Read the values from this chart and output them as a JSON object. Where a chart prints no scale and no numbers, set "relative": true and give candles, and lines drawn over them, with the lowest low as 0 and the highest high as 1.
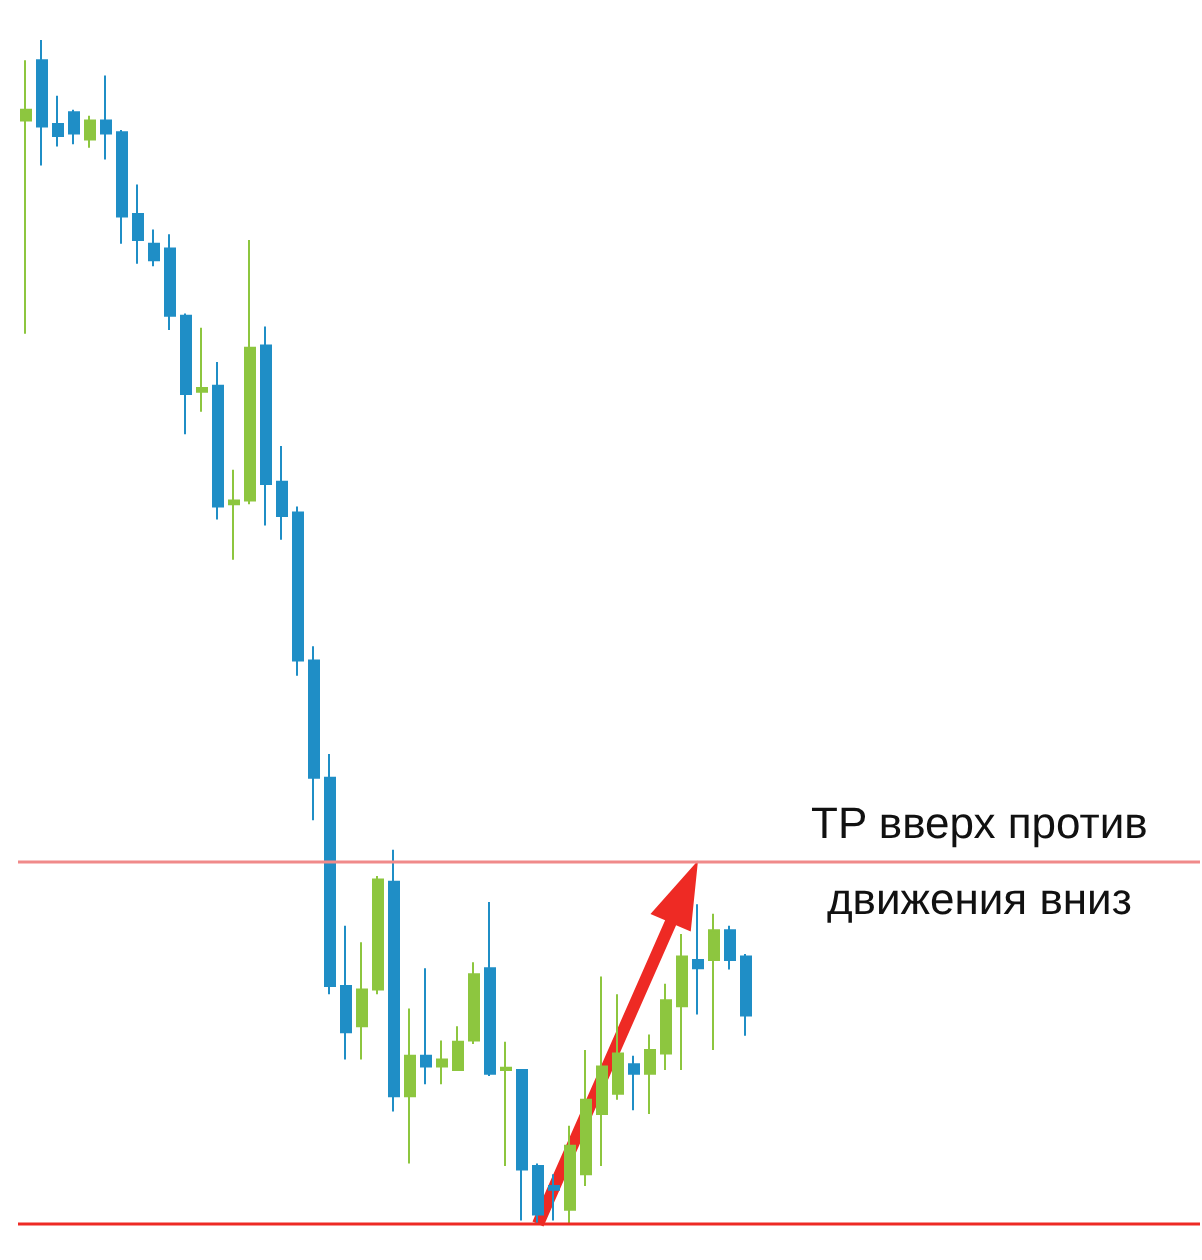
{
  "chart_data": {
    "type": "candlestick",
    "relative": true,
    "categories": [
      null,
      null,
      null,
      null,
      null,
      null,
      null,
      null,
      null,
      null,
      null,
      null,
      null,
      null,
      null,
      null,
      null,
      null,
      null,
      null,
      null,
      null,
      null,
      null,
      null,
      null,
      null,
      null,
      null,
      null,
      null,
      null,
      null,
      null,
      null,
      null,
      null,
      null,
      null,
      null,
      null,
      null,
      null,
      null,
      null,
      null
    ],
    "ohlc": [
      [
        0.932,
        0.983,
        0.752,
        0.941
      ],
      [
        0.983,
        1.0,
        0.894,
        0.927
      ],
      [
        0.929,
        0.953,
        0.91,
        0.919
      ],
      [
        0.939,
        0.941,
        0.912,
        0.921
      ],
      [
        0.916,
        0.936,
        0.909,
        0.932
      ],
      [
        0.932,
        0.97,
        0.899,
        0.921
      ],
      [
        0.922,
        0.924,
        0.828,
        0.851
      ],
      [
        0.853,
        0.878,
        0.811,
        0.831
      ],
      [
        0.828,
        0.84,
        0.809,
        0.814
      ],
      [
        0.824,
        0.836,
        0.755,
        0.767
      ],
      [
        0.767,
        0.769,
        0.667,
        0.701
      ],
      [
        0.703,
        0.757,
        0.686,
        0.706
      ],
      [
        0.708,
        0.728,
        0.595,
        0.606
      ],
      [
        0.608,
        0.637,
        0.561,
        0.611
      ],
      [
        0.611,
        0.831,
        0.608,
        0.74
      ],
      [
        0.742,
        0.758,
        0.59,
        0.625
      ],
      [
        0.627,
        0.657,
        0.578,
        0.598
      ],
      [
        0.601,
        0.606,
        0.463,
        0.476
      ],
      [
        0.476,
        0.488,
        0.341,
        0.377
      ],
      [
        0.377,
        0.397,
        0.194,
        0.201
      ],
      [
        0.201,
        0.252,
        0.139,
        0.162
      ],
      [
        0.167,
        0.238,
        0.139,
        0.198
      ],
      [
        0.198,
        0.294,
        0.194,
        0.291
      ],
      [
        0.289,
        0.316,
        0.095,
        0.108
      ],
      [
        0.108,
        0.182,
        0.051,
        0.142
      ],
      [
        0.142,
        0.216,
        0.118,
        0.133
      ],
      [
        0.133,
        0.155,
        0.118,
        0.139
      ],
      [
        0.13,
        0.167,
        0.13,
        0.154
      ],
      [
        0.155,
        0.221,
        0.152,
        0.211
      ],
      [
        0.216,
        0.272,
        0.125,
        0.127
      ],
      [
        0.13,
        0.154,
        0.049,
        0.132
      ],
      [
        0.13,
        0.13,
        0.003,
        0.046
      ],
      [
        0.049,
        0.051,
        0.0,
        0.008
      ],
      [
        0.032,
        0.042,
        0.003,
        0.029
      ],
      [
        0.012,
        0.083,
        0.0,
        0.066
      ],
      [
        0.042,
        0.147,
        0.032,
        0.105
      ],
      [
        0.093,
        0.209,
        0.049,
        0.133
      ],
      [
        0.11,
        0.194,
        0.105,
        0.144
      ],
      [
        0.135,
        0.142,
        0.096,
        0.127
      ],
      [
        0.127,
        0.16,
        0.093,
        0.147
      ],
      [
        0.144,
        0.203,
        0.13,
        0.189
      ],
      [
        0.184,
        0.245,
        0.13,
        0.226
      ],
      [
        0.223,
        0.27,
        0.177,
        0.216
      ],
      [
        0.223,
        0.262,
        0.147,
        0.248
      ],
      [
        0.248,
        0.252,
        0.215,
        0.223
      ],
      [
        0.226,
        0.228,
        0.159,
        0.176
      ]
    ],
    "colors": [
      "#8dc63f",
      "#1f8ec6",
      "#1f8ec6",
      "#1f8ec6",
      "#8dc63f",
      "#1f8ec6",
      "#1f8ec6",
      "#1f8ec6",
      "#1f8ec6",
      "#1f8ec6",
      "#1f8ec6",
      "#8dc63f",
      "#1f8ec6",
      "#8dc63f",
      "#8dc63f",
      "#1f8ec6",
      "#1f8ec6",
      "#1f8ec6",
      "#1f8ec6",
      "#1f8ec6",
      "#1f8ec6",
      "#8dc63f",
      "#8dc63f",
      "#1f8ec6",
      "#8dc63f",
      "#1f8ec6",
      "#8dc63f",
      "#8dc63f",
      "#8dc63f",
      "#1f8ec6",
      "#8dc63f",
      "#1f8ec6",
      "#1f8ec6",
      "#1f8ec6",
      "#8dc63f",
      "#8dc63f",
      "#8dc63f",
      "#8dc63f",
      "#1f8ec6",
      "#8dc63f",
      "#8dc63f",
      "#8dc63f",
      "#1f8ec6",
      "#8dc63f",
      "#1f8ec6",
      "#1f8ec6"
    ],
    "ref_lines": [
      {
        "axis": "y",
        "value": 0,
        "label": null,
        "color": "#ee2a24"
      },
      {
        "axis": "y",
        "value": 0.307,
        "label": "TP вверх против движения вниз",
        "color": "#f08a8a"
      }
    ]
  }
}
